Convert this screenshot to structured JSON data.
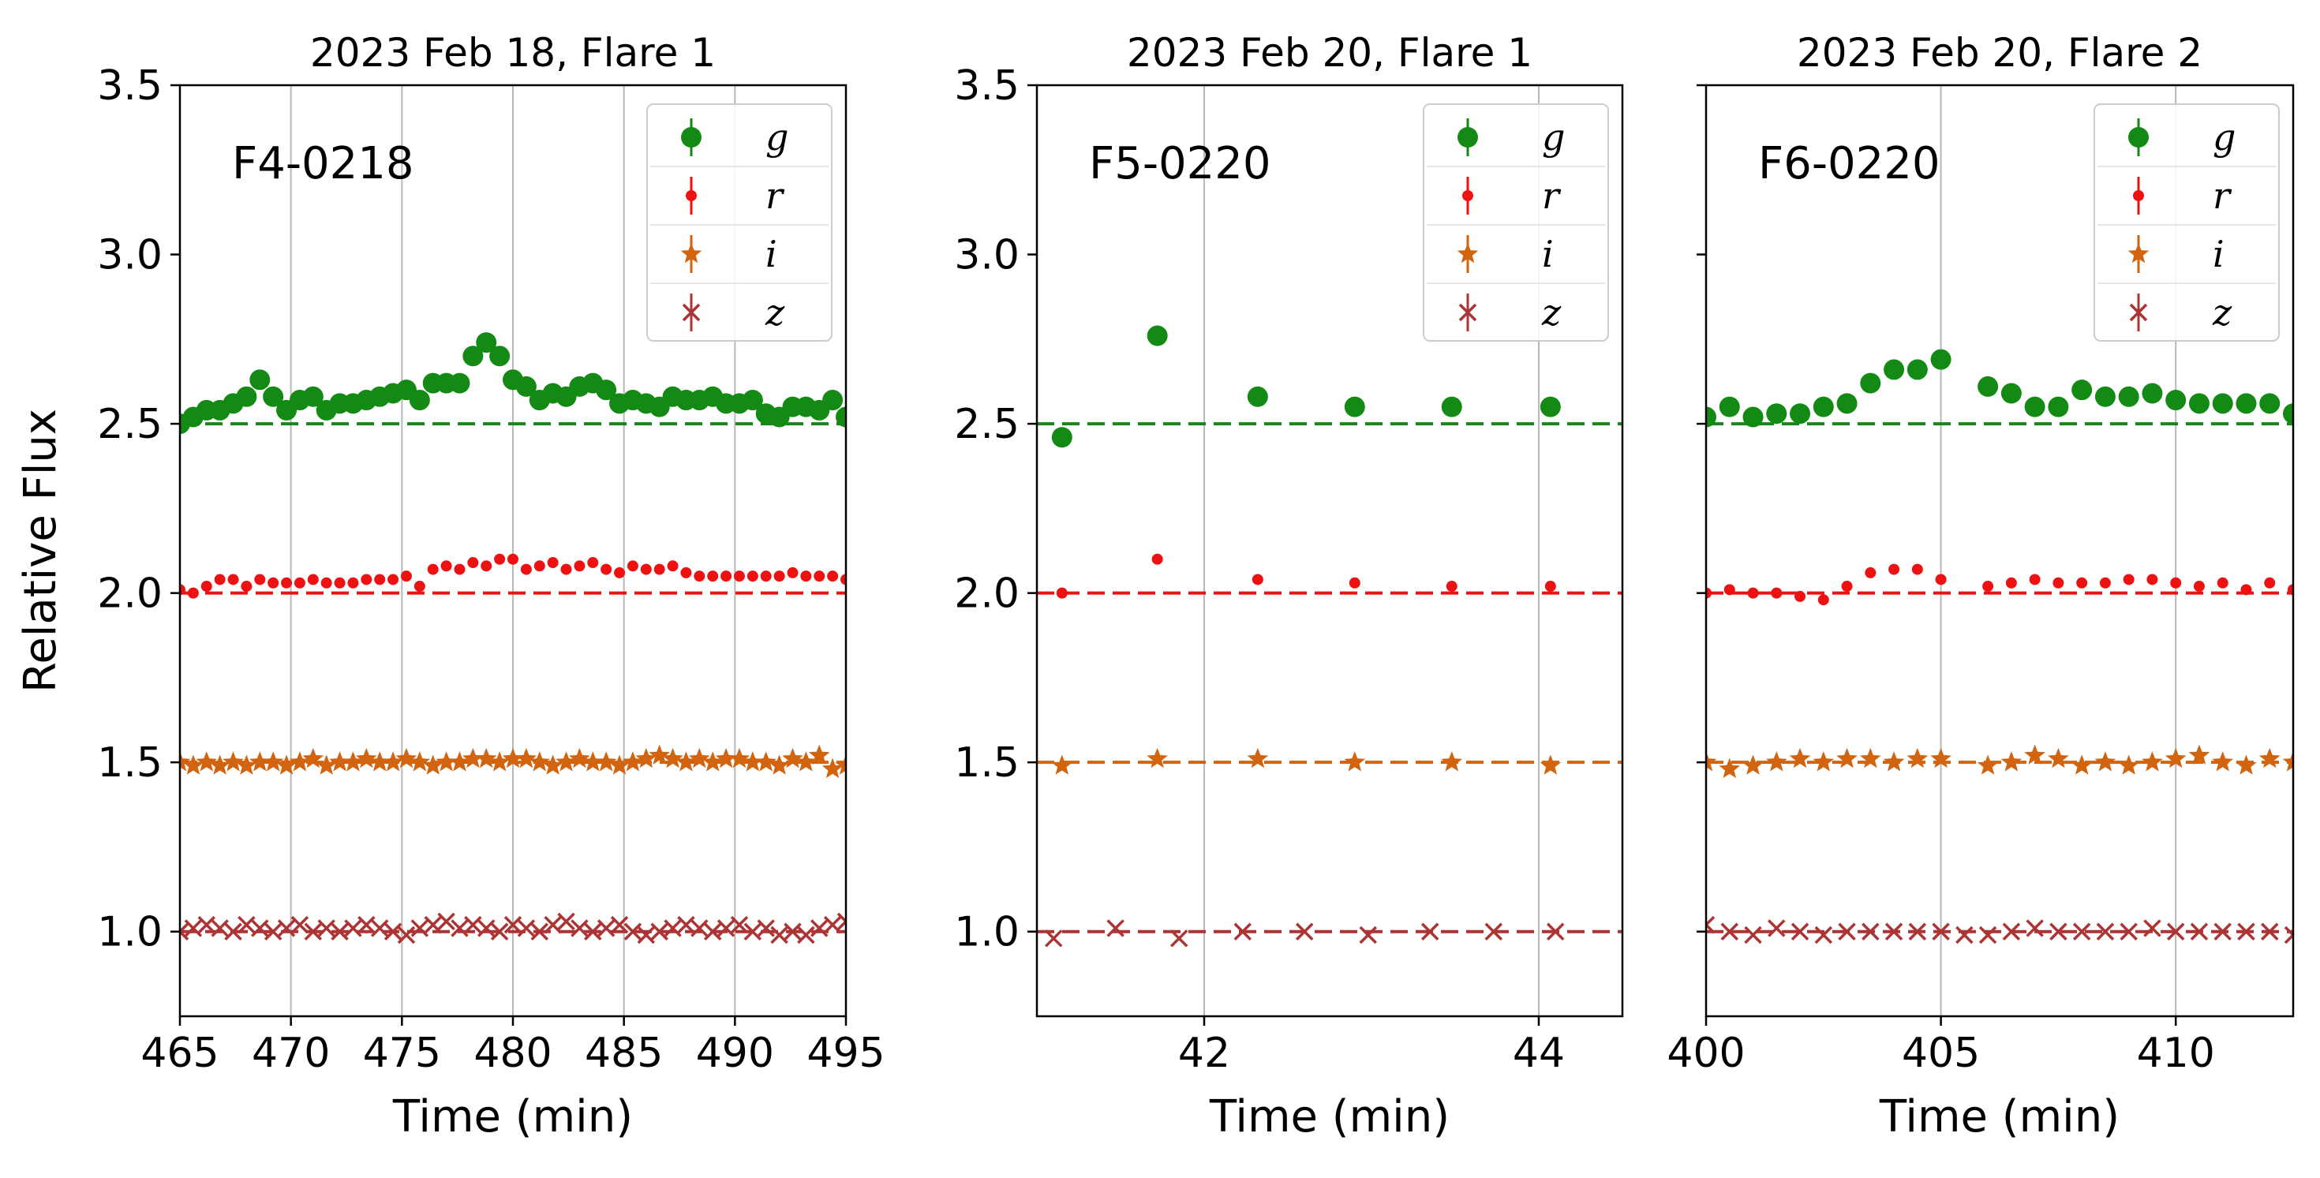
{
  "figure": {
    "ylabel": "Relative Flux"
  },
  "colors": {
    "g": "#138a13",
    "r": "#ee1111",
    "i": "#d2640f",
    "z": "#ad3434"
  },
  "chart_data": [
    {
      "type": "scatter",
      "title": "2023 Feb 18, Flare 1",
      "annotation": "F4-0218",
      "xlabel": "Time (min)",
      "ylabel": "Relative Flux",
      "xlim": [
        465,
        495
      ],
      "ylim": [
        0.75,
        3.5
      ],
      "xticks": [
        "465",
        "470",
        "475",
        "480",
        "485",
        "490",
        "495"
      ],
      "yticks": [
        "1.0",
        "1.5",
        "2.0",
        "2.5",
        "3.0",
        "3.5"
      ],
      "grid": "x",
      "legend": "top-right",
      "baselines": [
        2.5,
        2.0,
        1.5,
        1.0
      ],
      "series": [
        {
          "name": "g",
          "marker": "circle",
          "color": "#138a13",
          "x": [
            465.0,
            465.6,
            466.2,
            466.8,
            467.4,
            468.0,
            468.6,
            469.2,
            469.8,
            470.4,
            471.0,
            471.6,
            472.2,
            472.8,
            473.4,
            474.0,
            474.6,
            475.2,
            475.8,
            476.4,
            477.0,
            477.6,
            478.2,
            478.8,
            479.4,
            480.0,
            480.6,
            481.2,
            481.8,
            482.4,
            483.0,
            483.6,
            484.2,
            484.8,
            485.4,
            486.0,
            486.6,
            487.2,
            487.8,
            488.4,
            489.0,
            489.6,
            490.2,
            490.8,
            491.4,
            492.0,
            492.6,
            493.2,
            493.8,
            494.4,
            495.0
          ],
          "y": [
            2.5,
            2.52,
            2.54,
            2.54,
            2.56,
            2.58,
            2.63,
            2.58,
            2.54,
            2.57,
            2.58,
            2.54,
            2.56,
            2.56,
            2.57,
            2.58,
            2.59,
            2.6,
            2.57,
            2.62,
            2.62,
            2.62,
            2.7,
            2.74,
            2.7,
            2.63,
            2.61,
            2.57,
            2.59,
            2.58,
            2.61,
            2.62,
            2.6,
            2.56,
            2.57,
            2.56,
            2.55,
            2.58,
            2.57,
            2.57,
            2.58,
            2.56,
            2.56,
            2.57,
            2.53,
            2.52,
            2.55,
            2.55,
            2.54,
            2.57,
            2.52
          ]
        },
        {
          "name": "r",
          "marker": "dot",
          "color": "#ee1111",
          "x": [
            465.0,
            465.6,
            466.2,
            466.8,
            467.4,
            468.0,
            468.6,
            469.2,
            469.8,
            470.4,
            471.0,
            471.6,
            472.2,
            472.8,
            473.4,
            474.0,
            474.6,
            475.2,
            475.8,
            476.4,
            477.0,
            477.6,
            478.2,
            478.8,
            479.4,
            480.0,
            480.6,
            481.2,
            481.8,
            482.4,
            483.0,
            483.6,
            484.2,
            484.8,
            485.4,
            486.0,
            486.6,
            487.2,
            487.8,
            488.4,
            489.0,
            489.6,
            490.2,
            490.8,
            491.4,
            492.0,
            492.6,
            493.2,
            493.8,
            494.4,
            495.0
          ],
          "y": [
            2.01,
            2.0,
            2.02,
            2.04,
            2.04,
            2.02,
            2.04,
            2.03,
            2.03,
            2.03,
            2.04,
            2.03,
            2.03,
            2.03,
            2.04,
            2.04,
            2.04,
            2.05,
            2.02,
            2.07,
            2.08,
            2.07,
            2.09,
            2.08,
            2.1,
            2.1,
            2.07,
            2.08,
            2.09,
            2.07,
            2.08,
            2.09,
            2.07,
            2.06,
            2.08,
            2.07,
            2.07,
            2.08,
            2.06,
            2.05,
            2.05,
            2.05,
            2.05,
            2.05,
            2.05,
            2.05,
            2.06,
            2.05,
            2.05,
            2.05,
            2.04
          ]
        },
        {
          "name": "i",
          "marker": "star",
          "color": "#d2640f",
          "x": [
            465.0,
            465.6,
            466.2,
            466.8,
            467.4,
            468.0,
            468.6,
            469.2,
            469.8,
            470.4,
            471.0,
            471.6,
            472.2,
            472.8,
            473.4,
            474.0,
            474.6,
            475.2,
            475.8,
            476.4,
            477.0,
            477.6,
            478.2,
            478.8,
            479.4,
            480.0,
            480.6,
            481.2,
            481.8,
            482.4,
            483.0,
            483.6,
            484.2,
            484.8,
            485.4,
            486.0,
            486.6,
            487.2,
            487.8,
            488.4,
            489.0,
            489.6,
            490.2,
            490.8,
            491.4,
            492.0,
            492.6,
            493.2,
            493.8,
            494.4,
            495.0
          ],
          "y": [
            1.5,
            1.49,
            1.5,
            1.49,
            1.5,
            1.49,
            1.5,
            1.5,
            1.49,
            1.5,
            1.51,
            1.49,
            1.5,
            1.5,
            1.51,
            1.5,
            1.5,
            1.51,
            1.5,
            1.49,
            1.5,
            1.5,
            1.51,
            1.51,
            1.5,
            1.51,
            1.51,
            1.5,
            1.49,
            1.5,
            1.51,
            1.5,
            1.5,
            1.49,
            1.5,
            1.51,
            1.52,
            1.51,
            1.5,
            1.51,
            1.5,
            1.51,
            1.51,
            1.5,
            1.5,
            1.49,
            1.51,
            1.5,
            1.52,
            1.48,
            1.49
          ]
        },
        {
          "name": "z",
          "marker": "x",
          "color": "#ad3434",
          "x": [
            465.0,
            465.6,
            466.2,
            466.8,
            467.4,
            468.0,
            468.6,
            469.2,
            469.8,
            470.4,
            471.0,
            471.6,
            472.2,
            472.8,
            473.4,
            474.0,
            474.6,
            475.2,
            475.8,
            476.4,
            477.0,
            477.6,
            478.2,
            478.8,
            479.4,
            480.0,
            480.6,
            481.2,
            481.8,
            482.4,
            483.0,
            483.6,
            484.2,
            484.8,
            485.4,
            486.0,
            486.6,
            487.2,
            487.8,
            488.4,
            489.0,
            489.6,
            490.2,
            490.8,
            491.4,
            492.0,
            492.6,
            493.2,
            493.8,
            494.4,
            495.0
          ],
          "y": [
            1.0,
            1.01,
            1.02,
            1.01,
            1.0,
            1.02,
            1.01,
            1.0,
            1.01,
            1.02,
            1.0,
            1.01,
            1.0,
            1.01,
            1.02,
            1.01,
            1.0,
            0.99,
            1.01,
            1.02,
            1.03,
            1.01,
            1.02,
            1.01,
            1.0,
            1.02,
            1.01,
            1.0,
            1.02,
            1.03,
            1.01,
            1.0,
            1.01,
            1.02,
            1.0,
            0.99,
            1.0,
            1.01,
            1.02,
            1.01,
            1.0,
            1.01,
            1.02,
            1.0,
            1.01,
            0.99,
            1.0,
            0.99,
            1.01,
            1.02,
            1.03
          ]
        }
      ]
    },
    {
      "type": "scatter",
      "title": "2023 Feb 20, Flare 1",
      "annotation": "F5-0220",
      "xlabel": "Time (min)",
      "ylabel": "",
      "xlim": [
        41.0,
        44.5
      ],
      "ylim": [
        0.75,
        3.5
      ],
      "xticks": [
        "42",
        "44"
      ],
      "yticks": [
        "1.0",
        "1.5",
        "2.0",
        "2.5",
        "3.0",
        "3.5"
      ],
      "grid": "x",
      "legend": "top-right",
      "baselines": [
        2.5,
        2.0,
        1.5,
        1.0
      ],
      "series": [
        {
          "name": "g",
          "marker": "circle",
          "color": "#138a13",
          "x": [
            41.15,
            41.72,
            42.32,
            42.9,
            43.48,
            44.07
          ],
          "y": [
            2.46,
            2.76,
            2.58,
            2.55,
            2.55,
            2.55
          ]
        },
        {
          "name": "r",
          "marker": "dot",
          "color": "#ee1111",
          "x": [
            41.15,
            41.72,
            42.32,
            42.9,
            43.48,
            44.07
          ],
          "y": [
            2.0,
            2.1,
            2.04,
            2.03,
            2.02,
            2.02
          ]
        },
        {
          "name": "i",
          "marker": "star",
          "color": "#d2640f",
          "x": [
            41.15,
            41.72,
            42.32,
            42.9,
            43.48,
            44.07
          ],
          "y": [
            1.49,
            1.51,
            1.51,
            1.5,
            1.5,
            1.49
          ]
        },
        {
          "name": "z",
          "marker": "x",
          "color": "#ad3434",
          "x": [
            41.1,
            41.47,
            41.85,
            42.23,
            42.6,
            42.98,
            43.35,
            43.73,
            44.1
          ],
          "y": [
            0.98,
            1.01,
            0.98,
            1.0,
            1.0,
            0.99,
            1.0,
            1.0,
            1.0
          ]
        }
      ]
    },
    {
      "type": "scatter",
      "title": "2023 Feb 20, Flare 2",
      "annotation": "F6-0220",
      "xlabel": "Time (min)",
      "ylabel": "",
      "xlim": [
        400,
        412.5
      ],
      "ylim": [
        0.75,
        3.5
      ],
      "xticks": [
        "400",
        "405",
        "410"
      ],
      "yticks": [
        "1.0",
        "1.5",
        "2.0",
        "2.5",
        "3.0",
        "3.5"
      ],
      "grid": "x",
      "legend": "top-right",
      "baselines": [
        2.5,
        2.0,
        1.5,
        1.0
      ],
      "series": [
        {
          "name": "g",
          "marker": "circle",
          "color": "#138a13",
          "x": [
            400.0,
            400.5,
            401.0,
            401.5,
            402.0,
            402.5,
            403.0,
            403.5,
            404.0,
            404.5,
            405.0,
            406.0,
            406.5,
            407.0,
            407.5,
            408.0,
            408.5,
            409.0,
            409.5,
            410.0,
            410.5,
            411.0,
            411.5,
            412.0,
            412.5
          ],
          "y": [
            2.52,
            2.55,
            2.52,
            2.53,
            2.53,
            2.55,
            2.56,
            2.62,
            2.66,
            2.66,
            2.69,
            2.61,
            2.59,
            2.55,
            2.55,
            2.6,
            2.58,
            2.58,
            2.59,
            2.57,
            2.56,
            2.56,
            2.56,
            2.56,
            2.53
          ]
        },
        {
          "name": "r",
          "marker": "dot",
          "color": "#ee1111",
          "x": [
            400.0,
            400.5,
            401.0,
            401.5,
            402.0,
            402.5,
            403.0,
            403.5,
            404.0,
            404.5,
            405.0,
            406.0,
            406.5,
            407.0,
            407.5,
            408.0,
            408.5,
            409.0,
            409.5,
            410.0,
            410.5,
            411.0,
            411.5,
            412.0,
            412.5
          ],
          "y": [
            2.0,
            2.01,
            2.0,
            2.0,
            1.99,
            1.98,
            2.02,
            2.06,
            2.07,
            2.07,
            2.04,
            2.02,
            2.03,
            2.04,
            2.03,
            2.03,
            2.03,
            2.04,
            2.04,
            2.03,
            2.02,
            2.03,
            2.01,
            2.03,
            2.01
          ]
        },
        {
          "name": "i",
          "marker": "star",
          "color": "#d2640f",
          "x": [
            400.0,
            400.5,
            401.0,
            401.5,
            402.0,
            402.5,
            403.0,
            403.5,
            404.0,
            404.5,
            405.0,
            406.0,
            406.5,
            407.0,
            407.5,
            408.0,
            408.5,
            409.0,
            409.5,
            410.0,
            410.5,
            411.0,
            411.5,
            412.0,
            412.5
          ],
          "y": [
            1.5,
            1.48,
            1.49,
            1.5,
            1.51,
            1.5,
            1.51,
            1.51,
            1.5,
            1.51,
            1.51,
            1.49,
            1.5,
            1.52,
            1.51,
            1.49,
            1.5,
            1.49,
            1.5,
            1.51,
            1.52,
            1.5,
            1.49,
            1.51,
            1.5
          ]
        },
        {
          "name": "z",
          "marker": "x",
          "color": "#ad3434",
          "x": [
            400.0,
            400.5,
            401.0,
            401.5,
            402.0,
            402.5,
            403.0,
            403.5,
            404.0,
            404.5,
            405.0,
            405.5,
            406.0,
            406.5,
            407.0,
            407.5,
            408.0,
            408.5,
            409.0,
            409.5,
            410.0,
            410.5,
            411.0,
            411.5,
            412.0,
            412.5
          ],
          "y": [
            1.02,
            1.0,
            0.99,
            1.01,
            1.0,
            0.99,
            1.0,
            1.0,
            1.0,
            1.0,
            1.0,
            0.99,
            0.99,
            1.0,
            1.01,
            1.0,
            1.0,
            1.0,
            1.0,
            1.01,
            1.0,
            1.0,
            1.0,
            1.0,
            1.0,
            0.99
          ]
        }
      ]
    }
  ]
}
